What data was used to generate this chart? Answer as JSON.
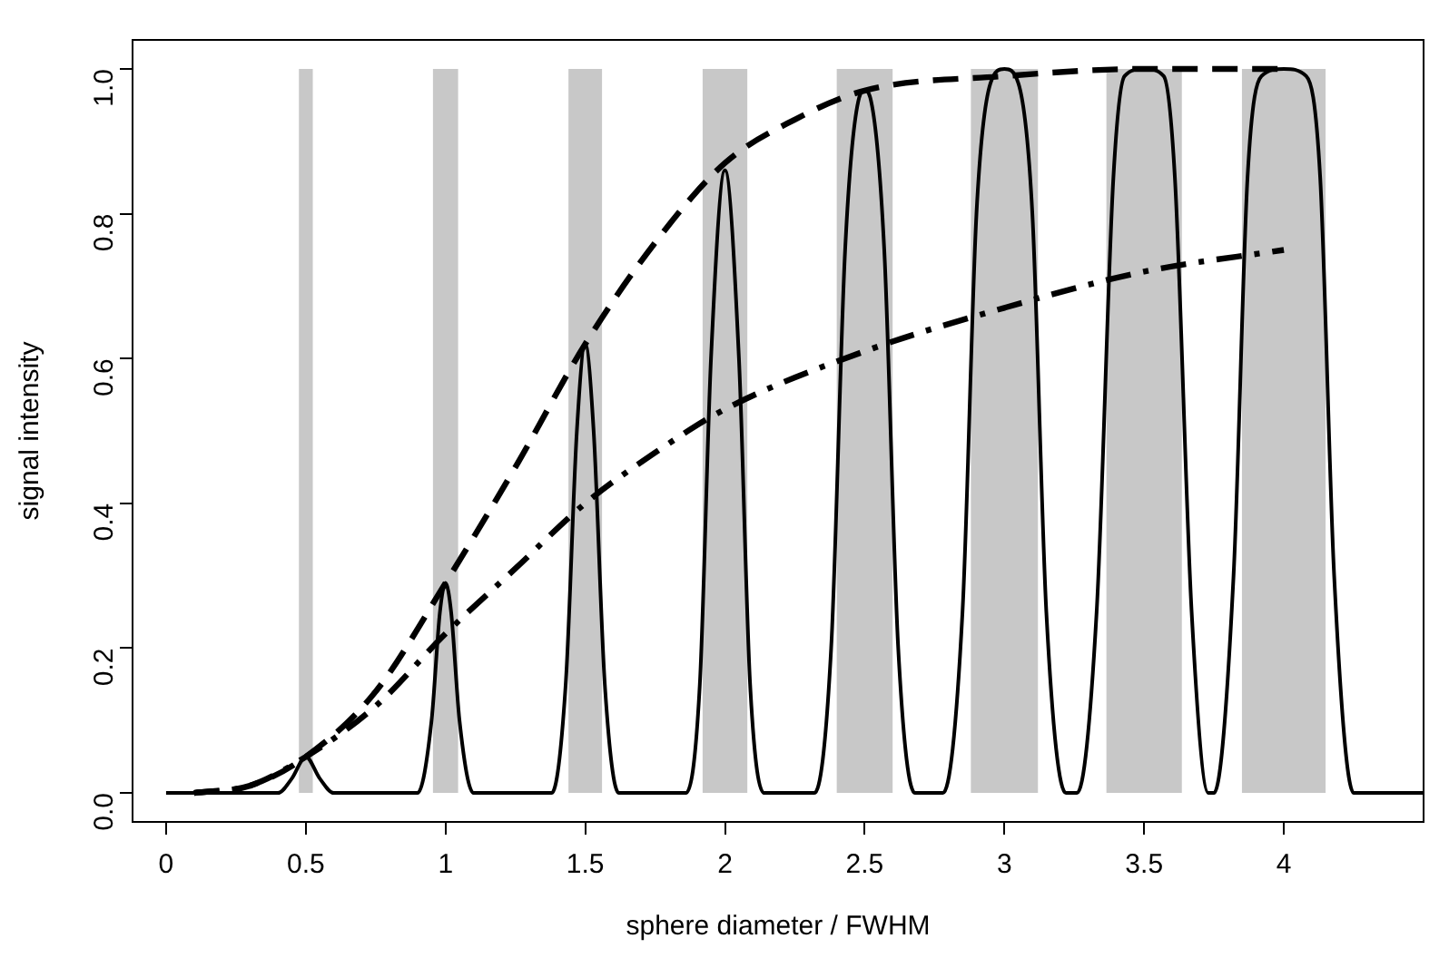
{
  "chart_data": {
    "type": "line",
    "xlabel": "sphere diameter / FWHM",
    "ylabel": "signal intensity",
    "xlim": [
      -0.12,
      4.5
    ],
    "ylim": [
      -0.04,
      1.04
    ],
    "xticks": [
      0,
      0.5,
      1,
      1.5,
      2,
      2.5,
      3,
      3.5,
      4
    ],
    "yticks": [
      {
        "value": 0,
        "label": "0.0"
      },
      {
        "value": 0.2,
        "label": "0.2"
      },
      {
        "value": 0.4,
        "label": "0.4"
      },
      {
        "value": 0.6,
        "label": "0.6"
      },
      {
        "value": 0.8,
        "label": "0.8"
      },
      {
        "value": 1,
        "label": "1.0"
      }
    ],
    "grid": false,
    "legend": false,
    "marker": "none",
    "series": [
      {
        "type": "area",
        "color": "#c8c8c8",
        "x": [
          0.475,
          0.475,
          0.525,
          0.525,
          0.955,
          0.955,
          1.045,
          1.045,
          1.44,
          1.44,
          1.56,
          1.56,
          1.92,
          1.92,
          2.08,
          2.08,
          2.4,
          2.4,
          2.6,
          2.6,
          2.88,
          2.88,
          3.12,
          3.12,
          3.365,
          3.365,
          3.635,
          3.635,
          3.85,
          3.85,
          4.15,
          4.15
        ],
        "values": [
          0,
          1,
          1,
          0,
          0,
          1,
          1,
          0,
          0,
          1,
          1,
          0,
          0,
          1,
          1,
          0,
          0,
          1,
          1,
          0,
          0,
          1,
          1,
          0,
          0,
          1,
          1,
          0,
          0,
          1,
          1,
          0
        ]
      },
      {
        "type": "line",
        "color": "#000000",
        "line_style": "solid",
        "x": [
          0,
          0.4,
          0.45,
          0.5,
          0.55,
          0.6,
          0.9,
          0.95,
          0.98,
          1,
          1.02,
          1.05,
          1.1,
          1.38,
          1.43,
          1.47,
          1.5,
          1.53,
          1.57,
          1.62,
          1.86,
          1.91,
          1.95,
          2,
          2.05,
          2.09,
          2.14,
          2.32,
          2.38,
          2.43,
          2.48,
          2.5,
          2.52,
          2.57,
          2.62,
          2.68,
          2.78,
          2.85,
          2.9,
          2.95,
          3,
          3.05,
          3.1,
          3.15,
          3.22,
          3.26,
          3.33,
          3.39,
          3.43,
          3.5,
          3.57,
          3.61,
          3.67,
          3.73,
          3.75,
          3.82,
          3.87,
          3.92,
          4,
          4.08,
          4.13,
          4.18,
          4.25,
          4.5
        ],
        "values": [
          0,
          0,
          0.02,
          0.05,
          0.02,
          0,
          0,
          0.1,
          0.25,
          0.29,
          0.25,
          0.1,
          0,
          0,
          0.15,
          0.5,
          0.62,
          0.5,
          0.15,
          0,
          0,
          0.15,
          0.6,
          0.86,
          0.6,
          0.15,
          0,
          0,
          0.2,
          0.75,
          0.96,
          0.97,
          0.96,
          0.75,
          0.2,
          0,
          0,
          0.25,
          0.8,
          0.98,
          1,
          0.98,
          0.8,
          0.25,
          0,
          0,
          0.25,
          0.85,
          0.99,
          1,
          0.99,
          0.85,
          0.25,
          0,
          0,
          0.3,
          0.85,
          0.99,
          1,
          0.99,
          0.85,
          0.3,
          0,
          0
        ]
      },
      {
        "type": "line",
        "color": "#000000",
        "line_style": "dashed",
        "x": [
          0.1,
          0.3,
          0.5,
          0.75,
          1,
          1.25,
          1.5,
          1.75,
          2,
          2.25,
          2.5,
          3,
          3.5,
          4
        ],
        "values": [
          0,
          0.01,
          0.05,
          0.14,
          0.29,
          0.45,
          0.62,
          0.76,
          0.87,
          0.93,
          0.97,
          0.99,
          1,
          1
        ]
      },
      {
        "type": "line",
        "color": "#000000",
        "line_style": "dashdot",
        "x": [
          0.1,
          0.3,
          0.5,
          0.75,
          1,
          1.25,
          1.5,
          1.75,
          2,
          2.5,
          3,
          3.5,
          4
        ],
        "values": [
          0,
          0.01,
          0.05,
          0.12,
          0.22,
          0.31,
          0.4,
          0.47,
          0.53,
          0.61,
          0.67,
          0.72,
          0.75
        ]
      }
    ]
  }
}
